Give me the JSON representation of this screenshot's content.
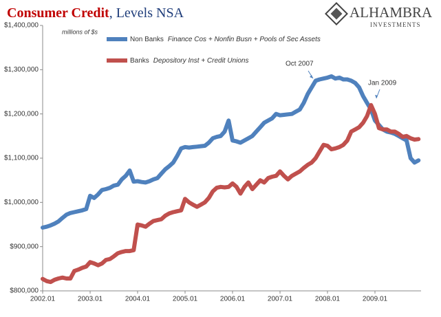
{
  "chart_data": {
    "type": "line",
    "title": "Consumer Credit",
    "title_suffix": ", Levels NSA",
    "logo": {
      "name": "ALHAMBRA",
      "sub": "INVESTMENTS"
    },
    "unit_label": "millions of $s",
    "categories": [
      "2002.01",
      null,
      null,
      null,
      null,
      null,
      null,
      null,
      null,
      null,
      null,
      null,
      "2003.01",
      null,
      null,
      null,
      null,
      null,
      null,
      null,
      null,
      null,
      null,
      null,
      "2004.01",
      null,
      null,
      null,
      null,
      null,
      null,
      null,
      null,
      null,
      null,
      null,
      "2005.01",
      null,
      null,
      null,
      null,
      null,
      null,
      null,
      null,
      null,
      null,
      null,
      "2006.01",
      null,
      null,
      null,
      null,
      null,
      null,
      null,
      null,
      null,
      null,
      null,
      "2007.01",
      null,
      null,
      null,
      null,
      null,
      null,
      null,
      null,
      null,
      null,
      null,
      "2008.01",
      null,
      null,
      null,
      null,
      null,
      null,
      null,
      null,
      null,
      null,
      null,
      "2009.01",
      null,
      null,
      null,
      null,
      null,
      null,
      null,
      null,
      null,
      null,
      null
    ],
    "series": [
      {
        "name": "Non Banks",
        "description": "Finance Cos + Nonfin Busn + Pools of Sec Assets",
        "color": "#4f81bd",
        "values": [
          943000,
          945000,
          948000,
          952000,
          957000,
          965000,
          972000,
          976000,
          978000,
          980000,
          982000,
          985000,
          1015000,
          1010000,
          1018000,
          1028000,
          1030000,
          1033000,
          1038000,
          1040000,
          1052000,
          1060000,
          1072000,
          1047000,
          1048000,
          1046000,
          1045000,
          1048000,
          1052000,
          1055000,
          1065000,
          1075000,
          1082000,
          1090000,
          1105000,
          1122000,
          1125000,
          1124000,
          1125000,
          1126000,
          1127000,
          1128000,
          1135000,
          1145000,
          1148000,
          1150000,
          1160000,
          1185000,
          1140000,
          1138000,
          1135000,
          1140000,
          1145000,
          1150000,
          1160000,
          1170000,
          1180000,
          1185000,
          1190000,
          1200000,
          1197000,
          1198000,
          1199000,
          1200000,
          1205000,
          1210000,
          1225000,
          1245000,
          1260000,
          1275000,
          1278000,
          1280000,
          1282000,
          1285000,
          1280000,
          1282000,
          1278000,
          1278000,
          1275000,
          1270000,
          1260000,
          1240000,
          1225000,
          1210000,
          1185000,
          1175000,
          1165000,
          1160000,
          1158000,
          1155000,
          1150000,
          1145000,
          1140000,
          1100000,
          1090000,
          1095000
        ]
      },
      {
        "name": "Banks",
        "description": "Depository Inst + Credit Unions",
        "color": "#c0504d",
        "values": [
          827000,
          822000,
          820000,
          825000,
          828000,
          830000,
          828000,
          828000,
          845000,
          848000,
          852000,
          855000,
          865000,
          862000,
          858000,
          862000,
          870000,
          872000,
          878000,
          885000,
          888000,
          890000,
          890000,
          892000,
          950000,
          948000,
          945000,
          952000,
          958000,
          960000,
          962000,
          970000,
          975000,
          978000,
          980000,
          982000,
          1008000,
          1000000,
          995000,
          990000,
          995000,
          1000000,
          1010000,
          1025000,
          1033000,
          1035000,
          1034000,
          1035000,
          1043000,
          1035000,
          1020000,
          1035000,
          1045000,
          1030000,
          1040000,
          1050000,
          1045000,
          1055000,
          1058000,
          1060000,
          1070000,
          1060000,
          1052000,
          1060000,
          1065000,
          1070000,
          1078000,
          1085000,
          1090000,
          1100000,
          1115000,
          1130000,
          1128000,
          1120000,
          1122000,
          1125000,
          1130000,
          1140000,
          1160000,
          1165000,
          1170000,
          1180000,
          1195000,
          1220000,
          1200000,
          1168000,
          1165000,
          1165000,
          1160000,
          1160000,
          1155000,
          1148000,
          1150000,
          1145000,
          1142000,
          1143000
        ]
      }
    ],
    "annotations": [
      {
        "text": "Oct 2007"
      },
      {
        "text": "Jan 2009"
      }
    ],
    "ylim": [
      800000,
      1400000
    ],
    "yticks": [
      {
        "value": 800000,
        "label": "$800,000"
      },
      {
        "value": 900000,
        "label": "$900,000"
      },
      {
        "value": 1000000,
        "label": "$1,000,000"
      },
      {
        "value": 1100000,
        "label": "$1,100,000"
      },
      {
        "value": 1200000,
        "label": "$1,200,000"
      },
      {
        "value": 1300000,
        "label": "$1,300,000"
      },
      {
        "value": 1400000,
        "label": "$1,400,000"
      }
    ],
    "grid": false
  }
}
